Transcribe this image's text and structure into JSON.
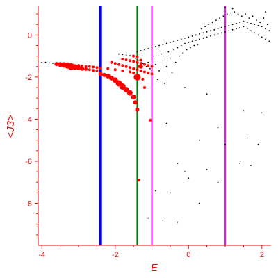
{
  "chart_data": {
    "type": "scatter",
    "xlabel": "E",
    "ylabel": "<J3>",
    "xlim": [
      -4.1,
      2.25
    ],
    "ylim": [
      -10.0,
      1.4
    ],
    "x_ticks": [
      -4,
      -2,
      0,
      2
    ],
    "y_ticks": [
      0,
      -2,
      -4,
      -6,
      -8
    ],
    "grid": false,
    "axis_color": "#e01010",
    "vertical_lines": [
      {
        "x": -2.4,
        "color": "#0000ee"
      },
      {
        "x": -1.4,
        "color": "#008000"
      },
      {
        "x": -1.0,
        "color": "#ff00ff"
      },
      {
        "x": 1.0,
        "color": "#ff00ff"
      }
    ],
    "series": [
      {
        "color": "#000000",
        "points": [
          [
            -4.0,
            -1.3
          ],
          [
            -3.9,
            -1.3
          ],
          [
            -3.8,
            -1.32
          ],
          [
            -3.7,
            -1.34
          ],
          [
            -1.9,
            -0.9
          ],
          [
            -1.8,
            -0.92
          ],
          [
            -1.7,
            -0.95
          ],
          [
            -1.6,
            -0.98
          ],
          [
            -1.5,
            -1.0
          ],
          [
            -1.45,
            -1.1
          ],
          [
            -1.4,
            -0.8
          ],
          [
            -1.35,
            -1.2
          ],
          [
            -1.3,
            -0.75
          ],
          [
            -1.25,
            -1.35
          ],
          [
            -1.2,
            -0.7
          ],
          [
            -1.15,
            -1.5
          ],
          [
            -1.1,
            -0.65
          ],
          [
            -1.1,
            -1.3
          ],
          [
            -1.05,
            -1.6
          ],
          [
            -1.0,
            -0.6
          ],
          [
            -1.0,
            -1.9
          ],
          [
            -0.95,
            -1.0
          ],
          [
            -0.9,
            -0.55
          ],
          [
            -0.9,
            -1.4
          ],
          [
            -0.85,
            -2.1
          ],
          [
            -0.8,
            -0.5
          ],
          [
            -0.8,
            -1.7
          ],
          [
            -0.75,
            -0.9
          ],
          [
            -0.7,
            -0.45
          ],
          [
            -0.7,
            -1.2
          ],
          [
            -0.65,
            -2.3
          ],
          [
            -0.6,
            -0.4
          ],
          [
            -0.6,
            -1.5
          ],
          [
            -0.55,
            -0.8
          ],
          [
            -0.5,
            -0.35
          ],
          [
            -0.5,
            -1.1
          ],
          [
            -0.45,
            -1.8
          ],
          [
            -0.4,
            -0.3
          ],
          [
            -0.4,
            -0.7
          ],
          [
            -0.35,
            -1.3
          ],
          [
            -0.3,
            -0.25
          ],
          [
            -0.3,
            -0.6
          ],
          [
            -0.25,
            -1.0
          ],
          [
            -0.2,
            -0.2
          ],
          [
            -0.2,
            -0.5
          ],
          [
            -0.15,
            -0.85
          ],
          [
            -0.1,
            -0.15
          ],
          [
            -0.1,
            -0.4
          ],
          [
            -0.05,
            -0.7
          ],
          [
            0.0,
            -0.1
          ],
          [
            0.0,
            -0.35
          ],
          [
            0.05,
            -0.6
          ],
          [
            0.1,
            -0.05
          ],
          [
            0.1,
            -0.3
          ],
          [
            0.15,
            -0.5
          ],
          [
            0.2,
            0.0
          ],
          [
            0.2,
            -0.25
          ],
          [
            0.25,
            -0.45
          ],
          [
            0.3,
            0.05
          ],
          [
            0.3,
            -0.2
          ],
          [
            0.35,
            0.3
          ],
          [
            0.4,
            0.1
          ],
          [
            0.4,
            -0.15
          ],
          [
            0.45,
            0.4
          ],
          [
            0.5,
            0.15
          ],
          [
            0.5,
            -0.1
          ],
          [
            0.55,
            0.5
          ],
          [
            0.6,
            0.2
          ],
          [
            0.6,
            -0.05
          ],
          [
            0.65,
            0.6
          ],
          [
            0.7,
            0.25
          ],
          [
            0.7,
            0.0
          ],
          [
            0.75,
            0.7
          ],
          [
            0.8,
            0.3
          ],
          [
            0.8,
            0.05
          ],
          [
            0.85,
            0.8
          ],
          [
            0.9,
            0.35
          ],
          [
            0.9,
            0.1
          ],
          [
            0.95,
            0.9
          ],
          [
            1.0,
            0.4
          ],
          [
            1.0,
            0.15
          ],
          [
            1.05,
            1.0
          ],
          [
            1.1,
            0.45
          ],
          [
            1.1,
            0.2
          ],
          [
            1.15,
            1.05
          ],
          [
            1.2,
            0.5
          ],
          [
            1.2,
            0.25
          ],
          [
            1.25,
            1.1
          ],
          [
            1.3,
            0.55
          ],
          [
            1.3,
            0.3
          ],
          [
            1.35,
            1.0
          ],
          [
            1.4,
            0.6
          ],
          [
            1.4,
            0.35
          ],
          [
            1.45,
            0.9
          ],
          [
            1.5,
            0.65
          ],
          [
            1.5,
            0.4
          ],
          [
            1.55,
            1.0
          ],
          [
            1.6,
            0.6
          ],
          [
            1.6,
            0.3
          ],
          [
            1.65,
            0.8
          ],
          [
            1.7,
            0.55
          ],
          [
            1.7,
            0.2
          ],
          [
            1.75,
            0.9
          ],
          [
            1.8,
            0.5
          ],
          [
            1.8,
            0.1
          ],
          [
            1.85,
            0.7
          ],
          [
            1.9,
            0.45
          ],
          [
            1.9,
            0.0
          ],
          [
            1.95,
            0.6
          ],
          [
            2.0,
            0.4
          ],
          [
            2.0,
            -0.1
          ],
          [
            2.05,
            0.8
          ],
          [
            2.1,
            0.3
          ],
          [
            2.1,
            -0.2
          ],
          [
            2.15,
            0.5
          ],
          [
            2.2,
            0.2
          ],
          [
            2.2,
            -0.3
          ],
          [
            1.0,
            1.3
          ],
          [
            1.2,
            1.25
          ],
          [
            2.1,
            1.1
          ],
          [
            -0.1,
            -2.5
          ],
          [
            0.5,
            -2.8
          ],
          [
            -0.6,
            -4.2
          ],
          [
            0.8,
            -4.4
          ],
          [
            1.5,
            -3.6
          ],
          [
            2.0,
            -3.7
          ],
          [
            0.3,
            -5.0
          ],
          [
            1.0,
            -5.2
          ],
          [
            1.6,
            -4.9
          ],
          [
            1.9,
            -5.2
          ],
          [
            -0.3,
            -6.1
          ],
          [
            -0.1,
            -6.5
          ],
          [
            0.5,
            -6.4
          ],
          [
            1.4,
            -6.1
          ],
          [
            1.7,
            -6.2
          ],
          [
            0.0,
            -6.8
          ],
          [
            0.8,
            -7.0
          ],
          [
            -0.9,
            -7.4
          ],
          [
            -0.5,
            -7.5
          ],
          [
            0.3,
            -8.0
          ],
          [
            -1.1,
            -8.7
          ],
          [
            -0.7,
            -8.8
          ],
          [
            -0.3,
            -8.9
          ]
        ]
      },
      {
        "color": "#ff0000",
        "points": [
          [
            -3.6,
            -1.38,
            3
          ],
          [
            -3.5,
            -1.4,
            3.5
          ],
          [
            -3.4,
            -1.42,
            4
          ],
          [
            -3.3,
            -1.45,
            4.5
          ],
          [
            -3.2,
            -1.5,
            5
          ],
          [
            -3.1,
            -1.52,
            4
          ],
          [
            -3.0,
            -1.55,
            3.5
          ],
          [
            -2.9,
            -1.6,
            3
          ],
          [
            -2.8,
            -1.62,
            2.5
          ],
          [
            -2.7,
            -1.65,
            2
          ],
          [
            -2.6,
            -1.68,
            2
          ],
          [
            -2.5,
            -1.7,
            2
          ],
          [
            -3.0,
            -1.45,
            2
          ],
          [
            -2.9,
            -1.47,
            2
          ],
          [
            -2.8,
            -1.5,
            2
          ],
          [
            -2.7,
            -1.5,
            2
          ],
          [
            -2.6,
            -1.52,
            2
          ],
          [
            -2.5,
            -1.55,
            2
          ],
          [
            -2.4,
            -1.58,
            2
          ],
          [
            -2.2,
            -1.6,
            2
          ],
          [
            -2.0,
            -1.65,
            2
          ],
          [
            -1.8,
            -1.7,
            2
          ],
          [
            -1.6,
            -1.75,
            2
          ],
          [
            -1.5,
            -1.8,
            2
          ],
          [
            -2.4,
            -1.85,
            3
          ],
          [
            -2.3,
            -1.9,
            3
          ],
          [
            -2.2,
            -1.95,
            3.5
          ],
          [
            -2.1,
            -2.05,
            3.5
          ],
          [
            -2.0,
            -2.15,
            4
          ],
          [
            -1.9,
            -2.3,
            4.5
          ],
          [
            -1.8,
            -2.45,
            4.5
          ],
          [
            -1.7,
            -2.6,
            4
          ],
          [
            -1.6,
            -2.75,
            4
          ],
          [
            -1.5,
            -2.95,
            3.5
          ],
          [
            -1.45,
            -3.2,
            3
          ],
          [
            -1.4,
            -3.55,
            3
          ],
          [
            -2.1,
            -1.3,
            2
          ],
          [
            -2.0,
            -1.35,
            2
          ],
          [
            -1.9,
            -1.4,
            2
          ],
          [
            -1.8,
            -1.45,
            2
          ],
          [
            -1.7,
            -1.5,
            2
          ],
          [
            -1.6,
            -1.55,
            2
          ],
          [
            -1.5,
            -1.6,
            2
          ],
          [
            -1.4,
            -1.65,
            2
          ],
          [
            -1.3,
            -1.7,
            2
          ],
          [
            -1.2,
            -1.75,
            2
          ],
          [
            -1.1,
            -1.8,
            2
          ],
          [
            -1.0,
            -1.85,
            2
          ],
          [
            -1.8,
            -1.15,
            2
          ],
          [
            -1.7,
            -1.18,
            2
          ],
          [
            -1.6,
            -1.22,
            2
          ],
          [
            -1.5,
            -1.25,
            2
          ],
          [
            -1.4,
            -1.3,
            2
          ],
          [
            -1.3,
            -1.35,
            2
          ],
          [
            -1.2,
            -1.4,
            2
          ],
          [
            -1.1,
            -1.45,
            2
          ],
          [
            -1.0,
            -1.5,
            2
          ],
          [
            -1.5,
            -1.0,
            2
          ],
          [
            -1.4,
            -1.05,
            2
          ],
          [
            -1.3,
            -1.5,
            3
          ],
          [
            -1.25,
            -2.1,
            2
          ],
          [
            -1.2,
            -2.5,
            2
          ],
          [
            -1.4,
            -2.0,
            5
          ],
          [
            -1.35,
            -1.5,
            2
          ],
          [
            -1.3,
            -1.2,
            2
          ],
          [
            -1.35,
            -6.9,
            2
          ],
          [
            -1.05,
            -4.05,
            2
          ]
        ]
      }
    ]
  }
}
